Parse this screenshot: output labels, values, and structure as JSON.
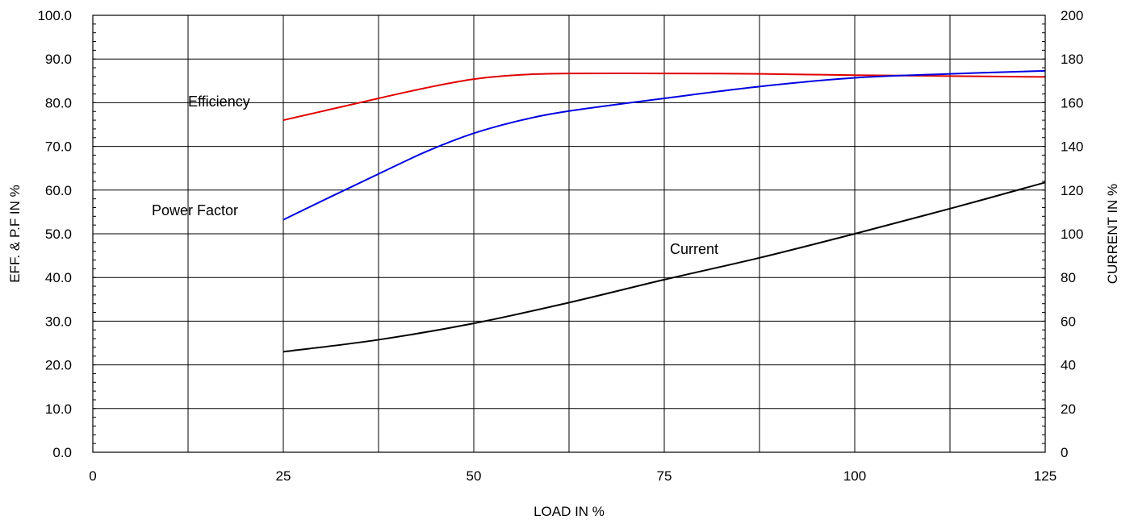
{
  "chart_data": {
    "type": "line",
    "title": "",
    "xlabel": "LOAD IN %",
    "ylabel_left": "EFF. & P.F IN %",
    "ylabel_right": "CURRENT IN %",
    "xlim": [
      0,
      125
    ],
    "ylim_left": [
      0,
      100
    ],
    "ylim_right": [
      0,
      200
    ],
    "grid": true,
    "x_ticks": [
      "0",
      "25",
      "50",
      "75",
      "100",
      "125"
    ],
    "y_left_ticks": [
      "0.0",
      "10.0",
      "20.0",
      "30.0",
      "40.0",
      "50.0",
      "60.0",
      "70.0",
      "80.0",
      "90.0",
      "100.0"
    ],
    "y_right_ticks": [
      "0",
      "20",
      "40",
      "60",
      "80",
      "100",
      "120",
      "140",
      "160",
      "180",
      "200"
    ],
    "series": [
      {
        "name": "Efficiency",
        "axis": "left",
        "color": "#e00000",
        "points": [
          [
            25,
            76.0
          ],
          [
            31.25,
            78.5
          ],
          [
            37.5,
            81.0
          ],
          [
            43.75,
            83.4
          ],
          [
            50,
            85.4
          ],
          [
            56.25,
            86.4
          ],
          [
            62.5,
            86.7
          ],
          [
            75,
            86.7
          ],
          [
            87.5,
            86.6
          ],
          [
            100,
            86.3
          ],
          [
            112.5,
            86.1
          ],
          [
            125,
            85.9
          ]
        ]
      },
      {
        "name": "Power Factor",
        "axis": "left",
        "color": "#0000e0",
        "points": [
          [
            25,
            53.2
          ],
          [
            31.25,
            58.5
          ],
          [
            37.5,
            63.7
          ],
          [
            43.75,
            68.8
          ],
          [
            50,
            73.0
          ],
          [
            56.25,
            76.0
          ],
          [
            62.5,
            78.1
          ],
          [
            75,
            81.0
          ],
          [
            87.5,
            83.7
          ],
          [
            100,
            85.7
          ],
          [
            112.5,
            86.6
          ],
          [
            125,
            87.3
          ]
        ]
      },
      {
        "name": "Current",
        "axis": "right",
        "color": "#000000",
        "points": [
          [
            25,
            46.0
          ],
          [
            37.5,
            51.5
          ],
          [
            50,
            59.0
          ],
          [
            62.5,
            68.5
          ],
          [
            75,
            79.0
          ],
          [
            87.5,
            89.0
          ],
          [
            100,
            100.0
          ],
          [
            112.5,
            111.5
          ],
          [
            125,
            123.5
          ]
        ]
      }
    ],
    "annotations": [
      {
        "text": "Efficiency",
        "series": "Efficiency"
      },
      {
        "text": "Power Factor",
        "series": "Power Factor"
      },
      {
        "text": "Current",
        "series": "Current"
      }
    ]
  }
}
